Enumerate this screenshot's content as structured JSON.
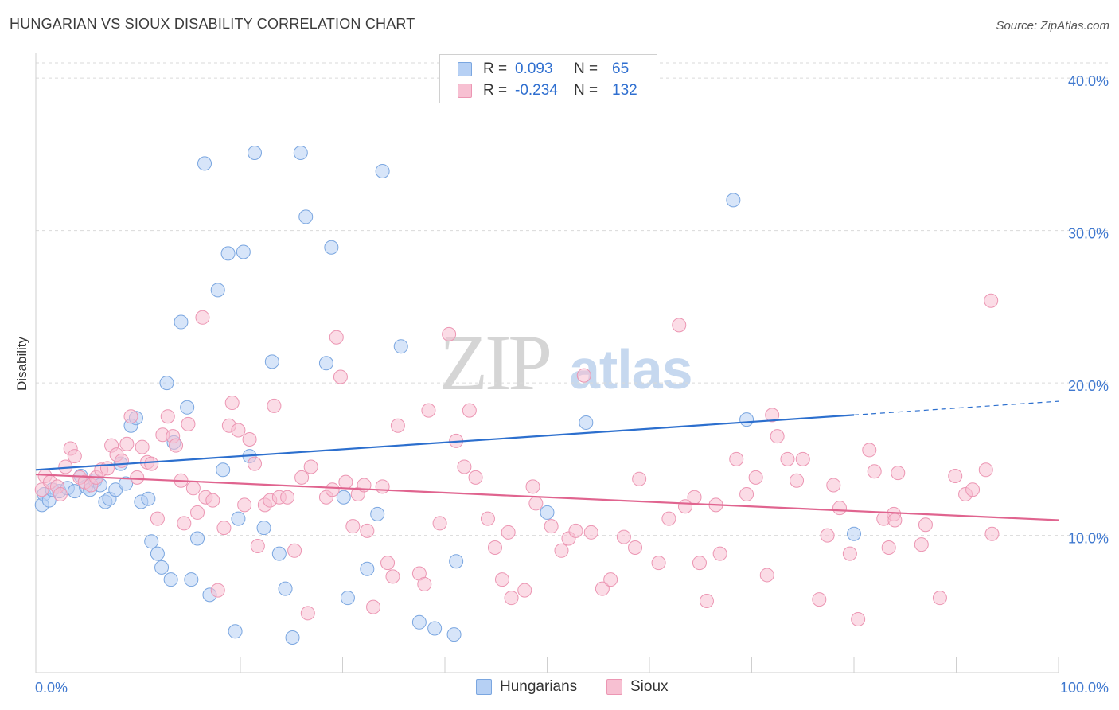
{
  "title": "HUNGARIAN VS SIOUX DISABILITY CORRELATION CHART",
  "source": "Source: ZipAtlas.com",
  "watermark": {
    "left": "ZIP",
    "right": "atlas"
  },
  "legend": {
    "rows": [
      {
        "r_label": "R =",
        "r_value": "0.093",
        "n_label": "N =",
        "n_value": "65"
      },
      {
        "r_label": "R =",
        "r_value": "-0.234",
        "n_label": "N =",
        "n_value": "132"
      }
    ]
  },
  "bottom_legend": [
    "Hungarians",
    "Sioux"
  ],
  "colors": {
    "hungarians_fill": "#b6d0f4",
    "hungarians_stroke": "#7aa6e0",
    "hungarians_line": "#2c6fce",
    "sioux_fill": "#f7c0d2",
    "sioux_stroke": "#ec96b3",
    "sioux_line": "#e0648f",
    "grid": "#dadada",
    "tick_label": "#3f78cf"
  },
  "chart_data": {
    "type": "scatter",
    "title": "HUNGARIAN VS SIOUX DISABILITY CORRELATION CHART",
    "xlabel": "",
    "ylabel": "Disability",
    "xlim": [
      0,
      100
    ],
    "ylim": [
      1,
      41
    ],
    "x_tick_labels": [
      "0.0%",
      "100.0%"
    ],
    "y_ticks": [
      10,
      20,
      30,
      40
    ],
    "y_tick_labels": [
      "10.0%",
      "20.0%",
      "30.0%",
      "40.0%"
    ],
    "grid": true,
    "legend_position": "top-center",
    "series": [
      {
        "name": "Hungarians",
        "r": 0.093,
        "n": 65,
        "trend": {
          "x0": 0,
          "y0": 14.3,
          "x1": 80,
          "y1": 17.9,
          "dashed_to_x": 100,
          "dashed_to_y": 18.8
        },
        "points": [
          [
            0.6,
            12.0
          ],
          [
            0.8,
            12.7
          ],
          [
            1.3,
            12.3
          ],
          [
            1.6,
            13.0
          ],
          [
            2.3,
            12.9
          ],
          [
            3.1,
            13.1
          ],
          [
            3.8,
            12.9
          ],
          [
            4.4,
            13.9
          ],
          [
            4.9,
            13.2
          ],
          [
            5.3,
            13.0
          ],
          [
            5.8,
            13.6
          ],
          [
            6.3,
            13.3
          ],
          [
            6.8,
            12.2
          ],
          [
            7.2,
            12.4
          ],
          [
            7.8,
            13.0
          ],
          [
            8.3,
            14.7
          ],
          [
            8.8,
            13.4
          ],
          [
            9.3,
            17.2
          ],
          [
            9.8,
            17.7
          ],
          [
            10.3,
            12.2
          ],
          [
            11.0,
            12.4
          ],
          [
            11.3,
            9.6
          ],
          [
            11.9,
            8.8
          ],
          [
            12.3,
            7.9
          ],
          [
            12.8,
            20.0
          ],
          [
            13.2,
            7.1
          ],
          [
            13.5,
            16.1
          ],
          [
            14.2,
            24.0
          ],
          [
            14.8,
            18.4
          ],
          [
            15.2,
            7.1
          ],
          [
            15.8,
            9.8
          ],
          [
            16.5,
            34.4
          ],
          [
            17.0,
            6.1
          ],
          [
            17.8,
            26.1
          ],
          [
            18.3,
            14.3
          ],
          [
            18.8,
            28.5
          ],
          [
            19.5,
            3.7
          ],
          [
            19.8,
            11.1
          ],
          [
            20.3,
            28.6
          ],
          [
            20.9,
            15.2
          ],
          [
            21.4,
            35.1
          ],
          [
            22.3,
            10.5
          ],
          [
            23.1,
            21.4
          ],
          [
            23.8,
            8.8
          ],
          [
            24.4,
            6.5
          ],
          [
            25.1,
            3.3
          ],
          [
            25.9,
            35.1
          ],
          [
            26.4,
            30.9
          ],
          [
            28.4,
            21.3
          ],
          [
            28.9,
            28.9
          ],
          [
            30.1,
            12.5
          ],
          [
            30.5,
            5.9
          ],
          [
            32.4,
            7.8
          ],
          [
            33.4,
            11.4
          ],
          [
            33.9,
            33.9
          ],
          [
            35.7,
            22.4
          ],
          [
            37.5,
            4.3
          ],
          [
            39.0,
            3.9
          ],
          [
            40.9,
            3.5
          ],
          [
            41.1,
            8.3
          ],
          [
            50.0,
            11.5
          ],
          [
            53.8,
            17.4
          ],
          [
            68.2,
            32.0
          ],
          [
            69.5,
            17.6
          ],
          [
            80.0,
            10.1
          ]
        ]
      },
      {
        "name": "Sioux",
        "r": -0.234,
        "n": 132,
        "trend": {
          "x0": 0,
          "y0": 14.0,
          "x1": 100,
          "y1": 11.0
        },
        "points": [
          [
            0.6,
            13.0
          ],
          [
            0.9,
            13.9
          ],
          [
            1.4,
            13.5
          ],
          [
            2.1,
            13.2
          ],
          [
            2.4,
            12.7
          ],
          [
            2.9,
            14.5
          ],
          [
            3.4,
            15.7
          ],
          [
            3.8,
            15.2
          ],
          [
            4.3,
            13.8
          ],
          [
            4.8,
            13.5
          ],
          [
            5.4,
            13.3
          ],
          [
            5.9,
            13.8
          ],
          [
            6.4,
            14.3
          ],
          [
            7.0,
            14.4
          ],
          [
            7.4,
            15.9
          ],
          [
            7.9,
            15.3
          ],
          [
            8.4,
            14.9
          ],
          [
            8.9,
            16.0
          ],
          [
            9.3,
            17.8
          ],
          [
            9.9,
            13.8
          ],
          [
            10.4,
            15.8
          ],
          [
            10.9,
            14.8
          ],
          [
            11.3,
            14.7
          ],
          [
            11.9,
            11.1
          ],
          [
            12.4,
            16.6
          ],
          [
            12.9,
            17.8
          ],
          [
            13.4,
            16.5
          ],
          [
            13.7,
            15.9
          ],
          [
            14.2,
            13.6
          ],
          [
            14.5,
            10.8
          ],
          [
            14.9,
            17.3
          ],
          [
            15.4,
            13.1
          ],
          [
            15.8,
            11.5
          ],
          [
            16.3,
            24.3
          ],
          [
            16.6,
            12.5
          ],
          [
            17.3,
            12.3
          ],
          [
            17.8,
            6.4
          ],
          [
            18.4,
            10.5
          ],
          [
            18.9,
            17.2
          ],
          [
            19.2,
            18.7
          ],
          [
            19.8,
            16.9
          ],
          [
            20.4,
            12.0
          ],
          [
            20.9,
            16.3
          ],
          [
            21.4,
            14.7
          ],
          [
            21.7,
            9.3
          ],
          [
            22.4,
            12.0
          ],
          [
            22.9,
            12.3
          ],
          [
            23.3,
            18.5
          ],
          [
            23.8,
            12.5
          ],
          [
            24.6,
            12.5
          ],
          [
            25.3,
            9.0
          ],
          [
            26.0,
            13.8
          ],
          [
            26.6,
            4.9
          ],
          [
            26.9,
            14.5
          ],
          [
            28.4,
            12.5
          ],
          [
            29.0,
            13.0
          ],
          [
            29.4,
            23.0
          ],
          [
            29.8,
            20.4
          ],
          [
            30.3,
            13.5
          ],
          [
            31.0,
            10.6
          ],
          [
            31.5,
            12.7
          ],
          [
            32.1,
            13.3
          ],
          [
            32.4,
            10.3
          ],
          [
            33.0,
            5.3
          ],
          [
            33.9,
            13.2
          ],
          [
            34.4,
            8.2
          ],
          [
            34.9,
            7.3
          ],
          [
            35.4,
            17.2
          ],
          [
            37.5,
            7.5
          ],
          [
            38.0,
            6.8
          ],
          [
            38.4,
            18.2
          ],
          [
            39.5,
            10.8
          ],
          [
            40.4,
            23.2
          ],
          [
            41.1,
            16.2
          ],
          [
            41.9,
            14.5
          ],
          [
            42.4,
            18.2
          ],
          [
            43.0,
            13.8
          ],
          [
            44.2,
            11.1
          ],
          [
            44.9,
            9.2
          ],
          [
            45.6,
            7.1
          ],
          [
            46.2,
            10.2
          ],
          [
            46.5,
            5.9
          ],
          [
            47.8,
            6.4
          ],
          [
            48.6,
            13.2
          ],
          [
            48.9,
            12.1
          ],
          [
            50.4,
            10.6
          ],
          [
            51.4,
            9.0
          ],
          [
            52.1,
            9.8
          ],
          [
            52.8,
            10.3
          ],
          [
            53.6,
            20.5
          ],
          [
            54.3,
            10.2
          ],
          [
            55.4,
            6.5
          ],
          [
            56.2,
            7.1
          ],
          [
            57.5,
            9.9
          ],
          [
            58.6,
            9.2
          ],
          [
            59.0,
            13.7
          ],
          [
            60.9,
            8.2
          ],
          [
            61.9,
            11.1
          ],
          [
            62.9,
            23.8
          ],
          [
            63.5,
            11.9
          ],
          [
            64.4,
            12.5
          ],
          [
            64.9,
            8.2
          ],
          [
            65.6,
            5.7
          ],
          [
            66.5,
            12.0
          ],
          [
            66.9,
            8.8
          ],
          [
            68.5,
            15.0
          ],
          [
            69.5,
            12.7
          ],
          [
            70.4,
            13.8
          ],
          [
            71.5,
            7.4
          ],
          [
            72.0,
            17.9
          ],
          [
            72.5,
            16.5
          ],
          [
            73.5,
            15.0
          ],
          [
            74.4,
            13.6
          ],
          [
            75.0,
            15.0
          ],
          [
            76.6,
            5.8
          ],
          [
            77.4,
            10.0
          ],
          [
            78.0,
            13.3
          ],
          [
            78.6,
            11.8
          ],
          [
            79.6,
            8.8
          ],
          [
            80.4,
            4.5
          ],
          [
            81.5,
            15.6
          ],
          [
            82.0,
            14.2
          ],
          [
            82.9,
            11.1
          ],
          [
            83.4,
            9.2
          ],
          [
            83.9,
            11.4
          ],
          [
            84.0,
            11.0
          ],
          [
            84.3,
            14.1
          ],
          [
            86.6,
            9.4
          ],
          [
            87.0,
            10.7
          ],
          [
            88.4,
            5.9
          ],
          [
            89.9,
            13.9
          ],
          [
            90.9,
            12.7
          ],
          [
            91.6,
            13.0
          ],
          [
            92.9,
            14.3
          ],
          [
            93.4,
            25.4
          ],
          [
            93.5,
            10.1
          ]
        ]
      }
    ]
  }
}
